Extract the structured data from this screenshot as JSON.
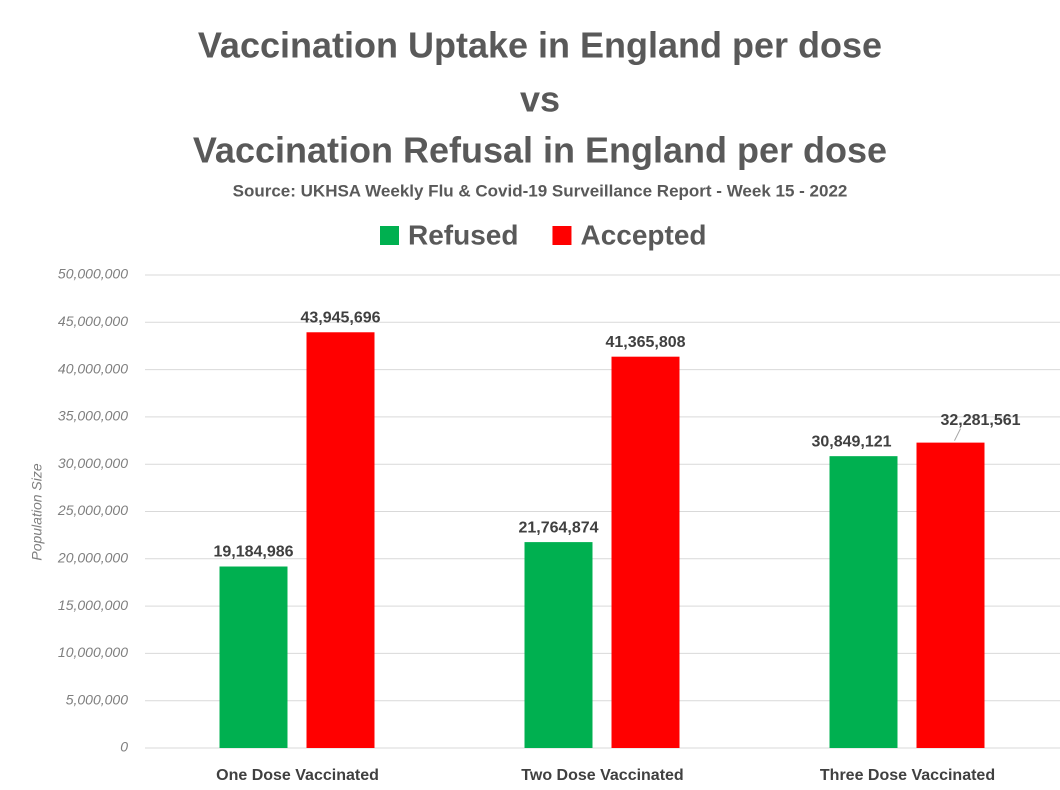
{
  "chart_data": {
    "type": "bar",
    "title": [
      "Vaccination Uptake in England per dose",
      "vs",
      "Vaccination Refusal in England per dose"
    ],
    "subtitle": "Source: UKHSA Weekly Flu & Covid-19 Surveillance Report - Week 15 - 2022",
    "y_axis_label": "Population Size",
    "categories": [
      "One Dose Vaccinated",
      "Two Dose Vaccinated",
      "Three Dose Vaccinated"
    ],
    "series": [
      {
        "name": "Refused",
        "color": "#00b050",
        "values": [
          19184986,
          21764874,
          30849121
        ],
        "value_labels": [
          "19,184,986",
          "21,764,874",
          "30,849,121"
        ]
      },
      {
        "name": "Accepted",
        "color": "#ff0000",
        "values": [
          43945696,
          41365808,
          32281561
        ],
        "value_labels": [
          "43,945,696",
          "41,365,808",
          "32,281,561"
        ]
      }
    ],
    "ylim": [
      0,
      50000000
    ],
    "yticks": [
      0,
      {
        "value": 5000000,
        "label": "5,000,000"
      },
      {
        "value": 10000000,
        "label": "10,000,000"
      },
      {
        "value": 15000000,
        "label": "15,000,000"
      },
      {
        "value": 20000000,
        "label": "20,000,000"
      },
      {
        "value": 25000000,
        "label": "25,000,000"
      },
      {
        "value": 30000000,
        "label": "30,000,000"
      },
      {
        "value": 35000000,
        "label": "35,000,000"
      },
      {
        "value": 40000000,
        "label": "40,000,000"
      },
      {
        "value": 45000000,
        "label": "45,000,000"
      },
      {
        "value": 50000000,
        "label": "50,000,000"
      }
    ],
    "grid": true,
    "legend": "top"
  }
}
